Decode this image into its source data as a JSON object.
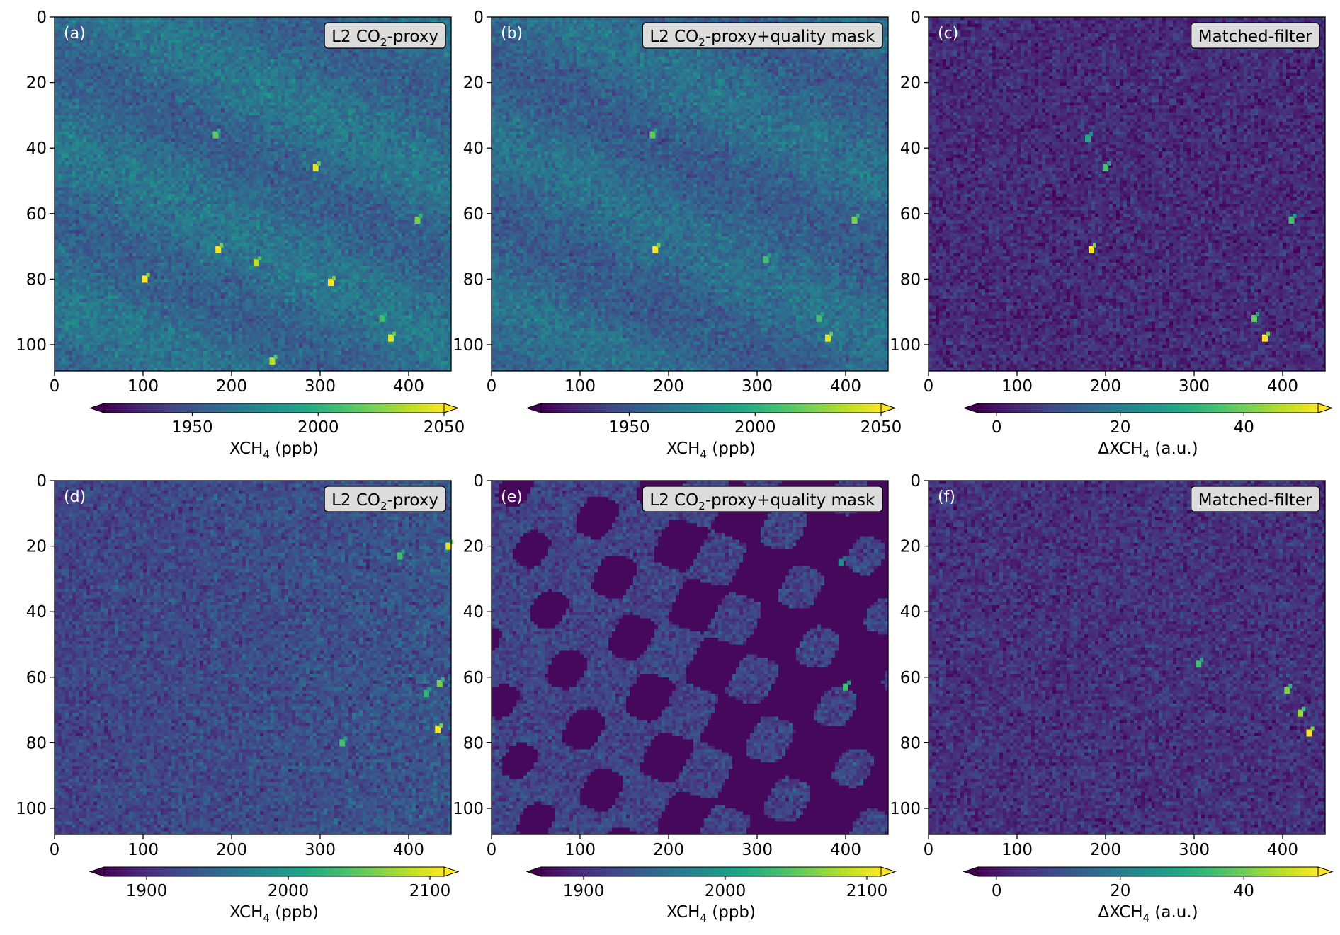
{
  "chart_data": [
    {
      "type": "heatmap",
      "panel": "(a)",
      "label": "L2 CO₂-proxy",
      "label_parts": [
        "L2 CO",
        "2",
        "-proxy"
      ],
      "colorbar": {
        "unit_prefix": "XCH",
        "unit_sub": "4",
        "unit_suffix": " (ppb)",
        "range": [
          1915,
          2050
        ],
        "ticks": [
          1950,
          2000,
          2050
        ],
        "extend": "both"
      },
      "x_ticks": [
        0,
        100,
        200,
        300,
        400
      ],
      "xlim": [
        0,
        448
      ],
      "y_ticks": [
        0,
        20,
        40,
        60,
        80,
        100
      ],
      "ylim": [
        108,
        0
      ],
      "background_level": 0.35,
      "hotspots": [
        {
          "x": 185,
          "y": 71,
          "v": 1.0
        },
        {
          "x": 102,
          "y": 80,
          "v": 1.0
        },
        {
          "x": 312,
          "y": 81,
          "v": 1.0
        },
        {
          "x": 295,
          "y": 46,
          "v": 0.95
        },
        {
          "x": 380,
          "y": 98,
          "v": 0.95
        },
        {
          "x": 228,
          "y": 75,
          "v": 0.9
        },
        {
          "x": 246,
          "y": 105,
          "v": 0.9
        },
        {
          "x": 410,
          "y": 62,
          "v": 0.8
        },
        {
          "x": 182,
          "y": 36,
          "v": 0.75
        },
        {
          "x": 370,
          "y": 92,
          "v": 0.7
        }
      ]
    },
    {
      "type": "heatmap",
      "panel": "(b)",
      "label": "L2 CO₂-proxy+quality mask",
      "label_parts": [
        "L2 CO",
        "2",
        "-proxy+quality mask"
      ],
      "colorbar": {
        "unit_prefix": "XCH",
        "unit_sub": "4",
        "unit_suffix": " (ppb)",
        "range": [
          1915,
          2050
        ],
        "ticks": [
          1950,
          2000,
          2050
        ],
        "extend": "both"
      },
      "x_ticks": [
        0,
        100,
        200,
        300,
        400
      ],
      "xlim": [
        0,
        448
      ],
      "y_ticks": [
        0,
        20,
        40,
        60,
        80,
        100
      ],
      "ylim": [
        108,
        0
      ],
      "background_level": 0.33,
      "hotspots": [
        {
          "x": 185,
          "y": 71,
          "v": 1.0
        },
        {
          "x": 380,
          "y": 98,
          "v": 0.95
        },
        {
          "x": 410,
          "y": 62,
          "v": 0.8
        },
        {
          "x": 182,
          "y": 36,
          "v": 0.75
        },
        {
          "x": 370,
          "y": 92,
          "v": 0.7
        },
        {
          "x": 310,
          "y": 74,
          "v": 0.7
        }
      ]
    },
    {
      "type": "heatmap",
      "panel": "(c)",
      "label": "Matched-filter",
      "label_parts": [
        "Matched-filter",
        "",
        ""
      ],
      "colorbar": {
        "unit_prefix": "ΔXCH",
        "unit_sub": "4",
        "unit_suffix": " (a.u.)",
        "range": [
          -3,
          52
        ],
        "ticks": [
          0,
          20,
          40
        ],
        "extend": "both"
      },
      "x_ticks": [
        0,
        100,
        200,
        300,
        400
      ],
      "xlim": [
        0,
        448
      ],
      "y_ticks": [
        0,
        20,
        40,
        60,
        80,
        100
      ],
      "ylim": [
        108,
        0
      ],
      "background_level": 0.12,
      "hotspots": [
        {
          "x": 184,
          "y": 71,
          "v": 1.0
        },
        {
          "x": 380,
          "y": 98,
          "v": 1.0
        },
        {
          "x": 368,
          "y": 92,
          "v": 0.75
        },
        {
          "x": 200,
          "y": 46,
          "v": 0.7
        },
        {
          "x": 410,
          "y": 62,
          "v": 0.7
        },
        {
          "x": 180,
          "y": 37,
          "v": 0.6
        }
      ]
    },
    {
      "type": "heatmap",
      "panel": "(d)",
      "label": "L2 CO₂-proxy",
      "label_parts": [
        "L2 CO",
        "2",
        "-proxy"
      ],
      "colorbar": {
        "unit_prefix": "XCH",
        "unit_sub": "4",
        "unit_suffix": " (ppb)",
        "range": [
          1870,
          2110
        ],
        "ticks": [
          1900,
          2000,
          2100
        ],
        "extend": "both"
      },
      "x_ticks": [
        0,
        100,
        200,
        300,
        400
      ],
      "xlim": [
        0,
        448
      ],
      "y_ticks": [
        0,
        20,
        40,
        60,
        80,
        100
      ],
      "ylim": [
        108,
        0
      ],
      "background_level": 0.2,
      "hotspots": [
        {
          "x": 433,
          "y": 76,
          "v": 1.0
        },
        {
          "x": 445,
          "y": 20,
          "v": 0.95
        },
        {
          "x": 435,
          "y": 62,
          "v": 0.8
        },
        {
          "x": 390,
          "y": 23,
          "v": 0.7
        },
        {
          "x": 325,
          "y": 80,
          "v": 0.7
        },
        {
          "x": 420,
          "y": 65,
          "v": 0.65
        }
      ]
    },
    {
      "type": "heatmap",
      "panel": "(e)",
      "label": "L2 CO₂-proxy+quality mask",
      "label_parts": [
        "L2 CO",
        "2",
        "-proxy+quality mask"
      ],
      "colorbar": {
        "unit_prefix": "XCH",
        "unit_sub": "4",
        "unit_suffix": " (ppb)",
        "range": [
          1870,
          2110
        ],
        "ticks": [
          1900,
          2000,
          2100
        ],
        "extend": "both"
      },
      "x_ticks": [
        0,
        100,
        200,
        300,
        400
      ],
      "xlim": [
        0,
        448
      ],
      "y_ticks": [
        0,
        20,
        40,
        60,
        80,
        100
      ],
      "ylim": [
        108,
        0
      ],
      "background_level": 0.2,
      "hotspots": [
        {
          "x": 400,
          "y": 63,
          "v": 0.7
        },
        {
          "x": 395,
          "y": 25,
          "v": 0.45
        }
      ]
    },
    {
      "type": "heatmap",
      "panel": "(f)",
      "label": "Matched-filter",
      "label_parts": [
        "Matched-filter",
        "",
        ""
      ],
      "colorbar": {
        "unit_prefix": "ΔXCH",
        "unit_sub": "4",
        "unit_suffix": " (a.u.)",
        "range": [
          -3,
          52
        ],
        "ticks": [
          0,
          20,
          40
        ],
        "extend": "both"
      },
      "x_ticks": [
        0,
        100,
        200,
        300,
        400
      ],
      "xlim": [
        0,
        448
      ],
      "y_ticks": [
        0,
        20,
        40,
        60,
        80,
        100
      ],
      "ylim": [
        108,
        0
      ],
      "background_level": 0.14,
      "hotspots": [
        {
          "x": 430,
          "y": 77,
          "v": 1.0
        },
        {
          "x": 420,
          "y": 71,
          "v": 0.85
        },
        {
          "x": 405,
          "y": 64,
          "v": 0.8
        },
        {
          "x": 305,
          "y": 56,
          "v": 0.7
        }
      ]
    }
  ]
}
